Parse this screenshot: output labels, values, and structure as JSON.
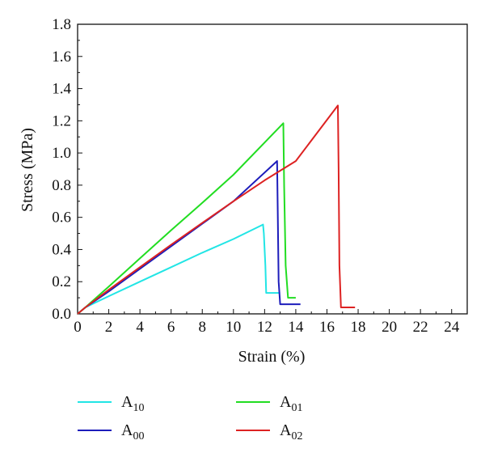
{
  "chart_data": {
    "type": "line",
    "title": "",
    "xlabel": "Strain (%)",
    "ylabel": "Stress (MPa)",
    "xlim": [
      0,
      25
    ],
    "ylim": [
      0,
      1.8
    ],
    "xticks": [
      "0",
      "2",
      "4",
      "6",
      "8",
      "10",
      "12",
      "14",
      "16",
      "18",
      "20",
      "22",
      "24"
    ],
    "yticks": [
      "0.0",
      "0.2",
      "0.4",
      "0.6",
      "0.8",
      "1.0",
      "1.2",
      "1.4",
      "1.6",
      "1.8"
    ],
    "grid": false,
    "legend_position": "bottom",
    "series": [
      {
        "name": "A10",
        "label_base": "A",
        "label_sub": "10",
        "color": "#22e5e5",
        "x": [
          0,
          0.5,
          2,
          4,
          6,
          8,
          10,
          11.9,
          11.95,
          12.05,
          12.1,
          13.0
        ],
        "y": [
          0,
          0.04,
          0.11,
          0.2,
          0.29,
          0.38,
          0.465,
          0.555,
          0.5,
          0.3,
          0.13,
          0.13
        ]
      },
      {
        "name": "A00",
        "label_base": "A",
        "label_sub": "00",
        "color": "#1d1dbb",
        "x": [
          0,
          0.5,
          2,
          4,
          6,
          8,
          10,
          12.8,
          12.85,
          12.9,
          13.0,
          14.3
        ],
        "y": [
          0,
          0.04,
          0.14,
          0.28,
          0.42,
          0.56,
          0.7,
          0.95,
          0.6,
          0.2,
          0.06,
          0.06
        ]
      },
      {
        "name": "A01",
        "label_base": "A",
        "label_sub": "01",
        "color": "#22dd22",
        "x": [
          0,
          0.5,
          2,
          4,
          6,
          8,
          10,
          13.2,
          13.25,
          13.35,
          13.5,
          14.0
        ],
        "y": [
          0,
          0.04,
          0.17,
          0.345,
          0.52,
          0.69,
          0.865,
          1.185,
          0.8,
          0.3,
          0.1,
          0.1
        ]
      },
      {
        "name": "A02",
        "label_base": "A",
        "label_sub": "02",
        "color": "#dd2222",
        "x": [
          0,
          0.5,
          2,
          4,
          6,
          8,
          10,
          12,
          14,
          16.7,
          16.75,
          16.8,
          16.9,
          17.8
        ],
        "y": [
          0,
          0.04,
          0.15,
          0.29,
          0.43,
          0.565,
          0.7,
          0.83,
          0.95,
          1.295,
          0.9,
          0.3,
          0.04,
          0.04
        ]
      }
    ]
  }
}
